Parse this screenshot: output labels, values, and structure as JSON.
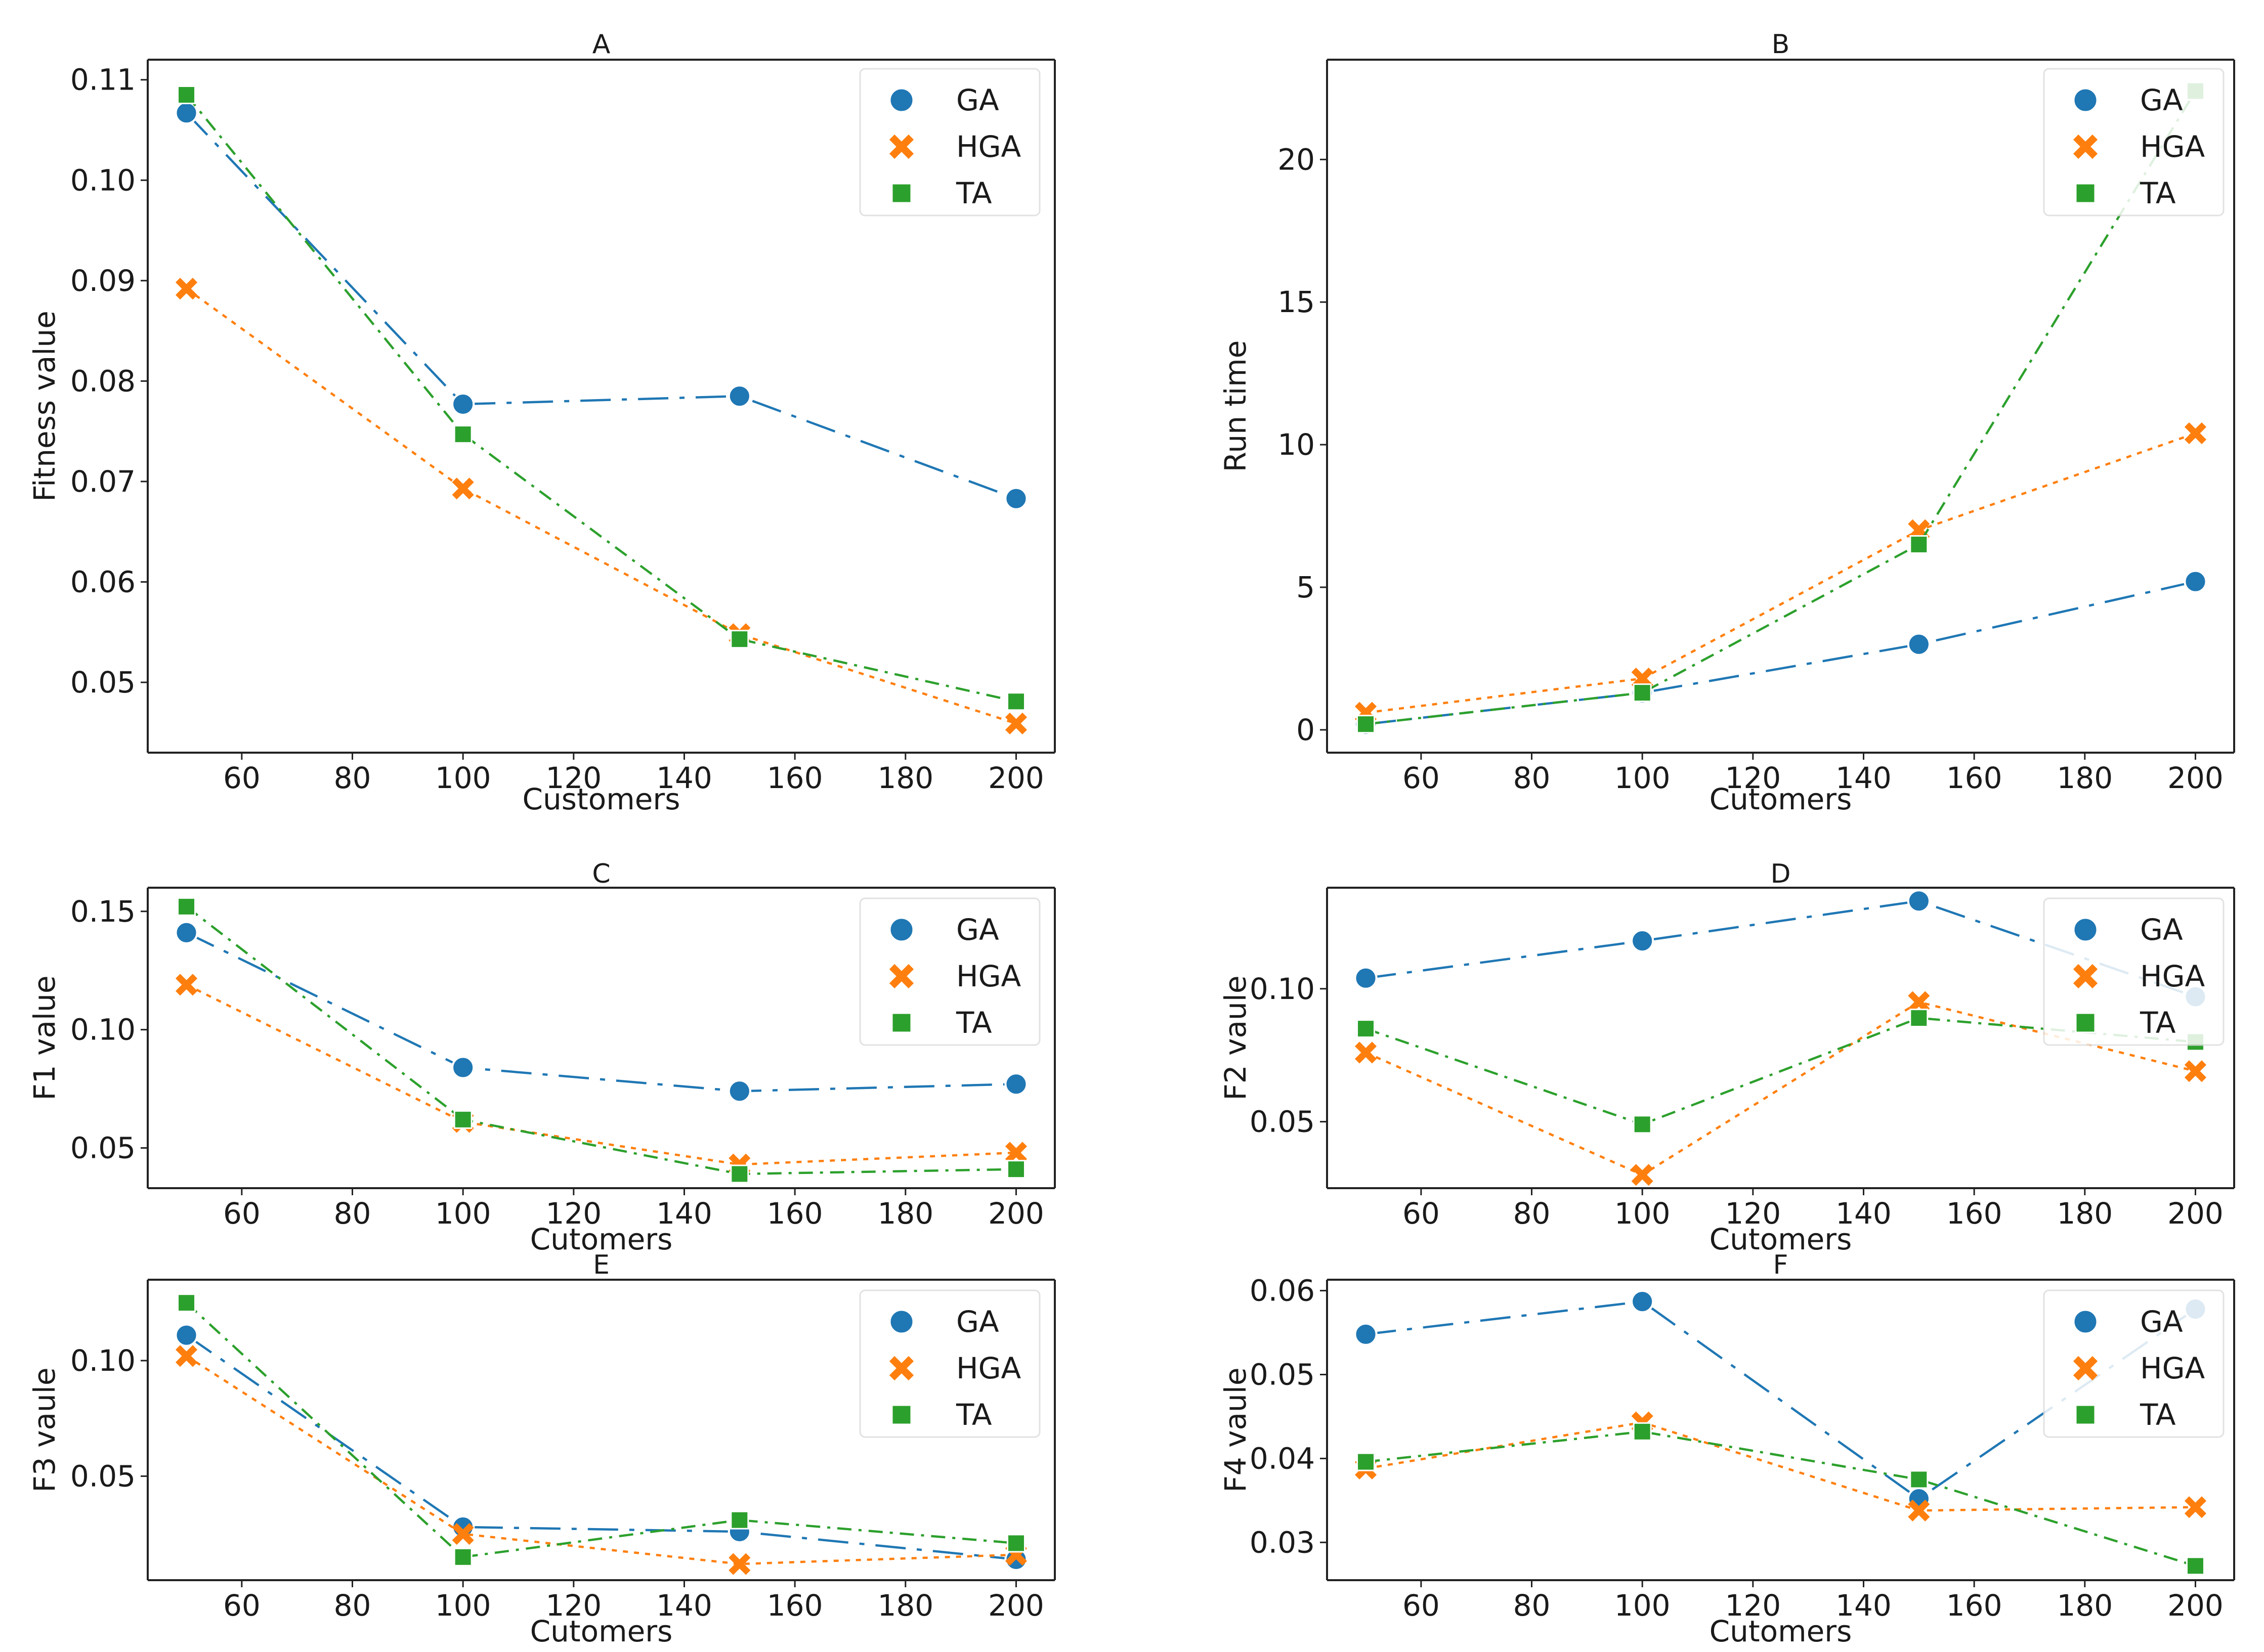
{
  "colors": {
    "GA": "#1f77b4",
    "HGA": "#ff7f0e",
    "TA": "#2ca02c"
  },
  "chart_data": [
    {
      "id": "A",
      "type": "line",
      "title": "A",
      "xlabel": "Customers",
      "ylabel": "Fitness value",
      "x": [
        50,
        100,
        150,
        200
      ],
      "xlim": [
        43,
        207
      ],
      "ylim": [
        0.043,
        0.112
      ],
      "xticks": [
        60,
        80,
        100,
        120,
        140,
        160,
        180,
        200
      ],
      "yticks": [
        0.05,
        0.06,
        0.07,
        0.08,
        0.09,
        0.1,
        0.11
      ],
      "ytick_labels": [
        "0.05",
        "0.06",
        "0.07",
        "0.08",
        "0.09",
        "0.10",
        "0.11"
      ],
      "legend": "top-right",
      "series": [
        {
          "name": "GA",
          "values": [
            0.1067,
            0.0777,
            0.0785,
            0.0683
          ]
        },
        {
          "name": "HGA",
          "values": [
            0.0892,
            0.0693,
            0.0548,
            0.0459
          ]
        },
        {
          "name": "TA",
          "values": [
            0.1085,
            0.0747,
            0.0543,
            0.0481
          ]
        }
      ]
    },
    {
      "id": "B",
      "type": "line",
      "title": "B",
      "xlabel": "Cutomers",
      "ylabel": "Run time",
      "x": [
        50,
        100,
        150,
        200
      ],
      "xlim": [
        43,
        207
      ],
      "ylim": [
        -0.8,
        23.5
      ],
      "xticks": [
        60,
        80,
        100,
        120,
        140,
        160,
        180,
        200
      ],
      "yticks": [
        0,
        5,
        10,
        15,
        20
      ],
      "ytick_labels": [
        "0",
        "5",
        "10",
        "15",
        "20"
      ],
      "legend": "top-right",
      "series": [
        {
          "name": "GA",
          "values": [
            0.2,
            1.3,
            3.0,
            5.2
          ]
        },
        {
          "name": "HGA",
          "values": [
            0.6,
            1.8,
            7.0,
            10.4
          ]
        },
        {
          "name": "TA",
          "values": [
            0.2,
            1.3,
            6.5,
            22.4
          ]
        }
      ]
    },
    {
      "id": "C",
      "type": "line",
      "title": "C",
      "xlabel": "Cutomers",
      "ylabel": "F1 value",
      "x": [
        50,
        100,
        150,
        200
      ],
      "xlim": [
        43,
        207
      ],
      "ylim": [
        0.033,
        0.16
      ],
      "xticks": [
        60,
        80,
        100,
        120,
        140,
        160,
        180,
        200
      ],
      "yticks": [
        0.05,
        0.1,
        0.15
      ],
      "ytick_labels": [
        "0.05",
        "0.10",
        "0.15"
      ],
      "legend": "top-right",
      "series": [
        {
          "name": "GA",
          "values": [
            0.141,
            0.084,
            0.074,
            0.077
          ]
        },
        {
          "name": "HGA",
          "values": [
            0.119,
            0.061,
            0.043,
            0.048
          ]
        },
        {
          "name": "TA",
          "values": [
            0.152,
            0.062,
            0.039,
            0.041
          ]
        }
      ]
    },
    {
      "id": "D",
      "type": "line",
      "title": "D",
      "xlabel": "Cutomers",
      "ylabel": "F2 vaule",
      "x": [
        50,
        100,
        150,
        200
      ],
      "xlim": [
        43,
        207
      ],
      "ylim": [
        0.025,
        0.138
      ],
      "xticks": [
        60,
        80,
        100,
        120,
        140,
        160,
        180,
        200
      ],
      "yticks": [
        0.05,
        0.1
      ],
      "ytick_labels": [
        "0.05",
        "0.10"
      ],
      "legend": "top-right",
      "series": [
        {
          "name": "GA",
          "values": [
            0.104,
            0.118,
            0.133,
            0.097
          ]
        },
        {
          "name": "HGA",
          "values": [
            0.076,
            0.03,
            0.095,
            0.069
          ]
        },
        {
          "name": "TA",
          "values": [
            0.085,
            0.049,
            0.089,
            0.08
          ]
        }
      ]
    },
    {
      "id": "E",
      "type": "line",
      "title": "E",
      "xlabel": "Cutomers",
      "ylabel": "F3 vaule",
      "x": [
        50,
        100,
        150,
        200
      ],
      "xlim": [
        43,
        207
      ],
      "ylim": [
        0.005,
        0.135
      ],
      "xticks": [
        60,
        80,
        100,
        120,
        140,
        160,
        180,
        200
      ],
      "yticks": [
        0.05,
        0.1
      ],
      "ytick_labels": [
        "0.05",
        "0.10"
      ],
      "legend": "top-right",
      "series": [
        {
          "name": "GA",
          "values": [
            0.111,
            0.028,
            0.026,
            0.014
          ]
        },
        {
          "name": "HGA",
          "values": [
            0.102,
            0.025,
            0.012,
            0.016
          ]
        },
        {
          "name": "TA",
          "values": [
            0.125,
            0.015,
            0.031,
            0.021
          ]
        }
      ]
    },
    {
      "id": "F",
      "type": "line",
      "title": "F",
      "xlabel": "Cutomers",
      "ylabel": "F4 vaule",
      "x": [
        50,
        100,
        150,
        200
      ],
      "xlim": [
        43,
        207
      ],
      "ylim": [
        0.0255,
        0.0613
      ],
      "xticks": [
        60,
        80,
        100,
        120,
        140,
        160,
        180,
        200
      ],
      "yticks": [
        0.03,
        0.04,
        0.05,
        0.06
      ],
      "ytick_labels": [
        "0.03",
        "0.04",
        "0.05",
        "0.06"
      ],
      "legend": "top-right",
      "series": [
        {
          "name": "GA",
          "values": [
            0.0548,
            0.0587,
            0.0352,
            0.0578
          ]
        },
        {
          "name": "HGA",
          "values": [
            0.0388,
            0.0443,
            0.0338,
            0.0342
          ]
        },
        {
          "name": "TA",
          "values": [
            0.0396,
            0.0432,
            0.0375,
            0.0272
          ]
        }
      ]
    }
  ]
}
